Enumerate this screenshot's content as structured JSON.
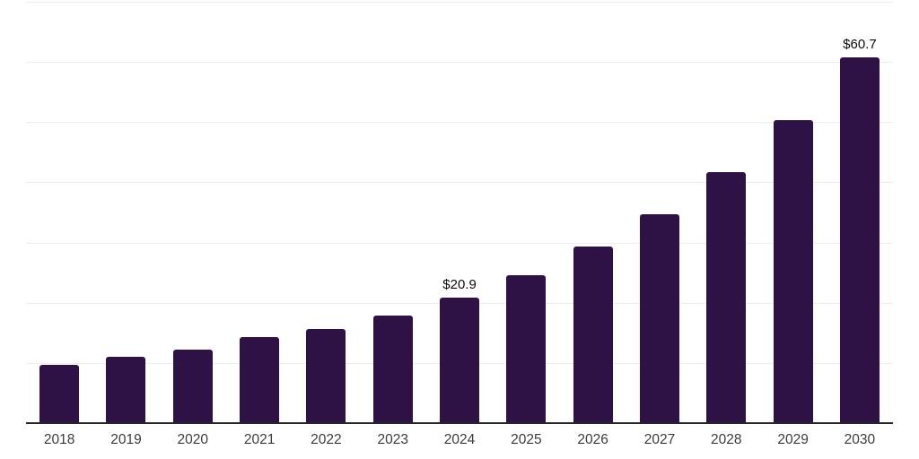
{
  "chart_data": {
    "type": "bar",
    "title": "",
    "xlabel": "",
    "ylabel": "",
    "categories": [
      "2018",
      "2019",
      "2020",
      "2021",
      "2022",
      "2023",
      "2024",
      "2025",
      "2026",
      "2027",
      "2028",
      "2029",
      "2030"
    ],
    "values": [
      9.7,
      11.0,
      12.2,
      14.3,
      15.7,
      17.9,
      20.9,
      24.6,
      29.3,
      34.7,
      41.7,
      50.3,
      60.7
    ],
    "bar_labels": [
      "",
      "",
      "",
      "",
      "",
      "",
      "$20.9",
      "",
      "",
      "",
      "",
      "",
      "$60.7"
    ],
    "ylim": [
      0,
      70
    ],
    "grid_step": 10,
    "grid_on": true,
    "y_tick_labels_shown": false,
    "legend": "none",
    "colors": {
      "bar": "#2F1245",
      "gridline": "#EEEEEE",
      "axis_line": "#262626",
      "bar_value_label": "#0A0A0A",
      "x_tick_label": "#3C3C3C",
      "background": "#FFFFFF"
    }
  }
}
